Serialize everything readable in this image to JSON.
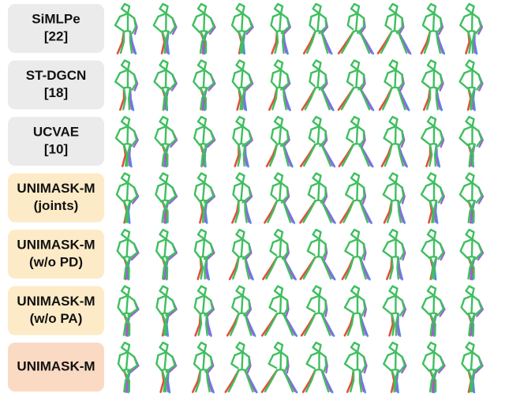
{
  "rows": [
    {
      "label": [
        "SiMLPe",
        "[22]"
      ],
      "color": "#ebebeb"
    },
    {
      "label": [
        "ST-DGCN",
        "[18]"
      ],
      "color": "#ebebeb"
    },
    {
      "label": [
        "UCVAE",
        "[10]"
      ],
      "color": "#ebebeb"
    },
    {
      "label": [
        "UNIMASK-M",
        "(joints)"
      ],
      "color": "#fdebc8"
    },
    {
      "label": [
        "UNIMASK-M",
        "(w/o PD)"
      ],
      "color": "#fdebc8"
    },
    {
      "label": [
        "UNIMASK-M",
        "(w/o PA)"
      ],
      "color": "#fdebc8"
    },
    {
      "label": [
        "UNIMASK-M"
      ],
      "color": "#fbdac4"
    }
  ]
}
